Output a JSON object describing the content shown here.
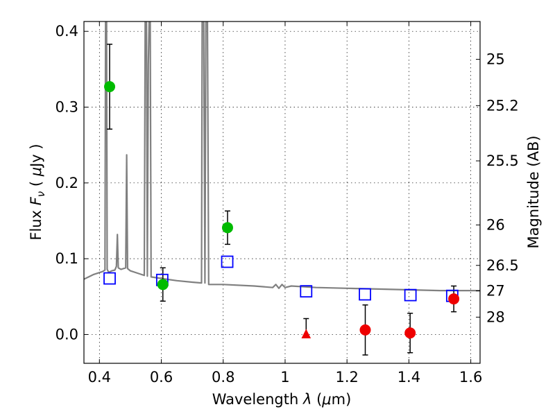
{
  "chart_data": {
    "type": "scatter",
    "xlabel_parts": {
      "pre": "Wavelength  ",
      "sym": "λ",
      "post": " (",
      "mu": "μ",
      "end": "m)"
    },
    "ylabel_parts": {
      "pre": "Flux  ",
      "sym": "F",
      "sub": "ν",
      "post": "  ( ",
      "mu": "μ",
      "end": "Jy )"
    },
    "ylabel_right": "Magnitude (AB)",
    "xlim": [
      0.35,
      1.63
    ],
    "ylim": [
      -0.038,
      0.413
    ],
    "grid": true,
    "x_ticks": [
      {
        "value": 0.4,
        "label": "0.4"
      },
      {
        "value": 0.6,
        "label": "0.6"
      },
      {
        "value": 0.8,
        "label": "0.8"
      },
      {
        "value": 1.0,
        "label": "1"
      },
      {
        "value": 1.2,
        "label": "1.2"
      },
      {
        "value": 1.4,
        "label": "1.4"
      },
      {
        "value": 1.6,
        "label": "1.6"
      }
    ],
    "y_ticks": [
      {
        "value": 0.0,
        "label": "0.0"
      },
      {
        "value": 0.1,
        "label": "0.1"
      },
      {
        "value": 0.2,
        "label": "0.2"
      },
      {
        "value": 0.3,
        "label": "0.3"
      },
      {
        "value": 0.4,
        "label": "0.4"
      }
    ],
    "magnitude_ticks": [
      {
        "value": 25,
        "label": "25"
      },
      {
        "value": 25.2,
        "label": "25.2"
      },
      {
        "value": 25.5,
        "label": "25.5"
      },
      {
        "value": 26,
        "label": "26"
      },
      {
        "value": 26.5,
        "label": "26.5"
      },
      {
        "value": 27,
        "label": "27"
      },
      {
        "value": 28,
        "label": "28"
      }
    ],
    "series": [
      {
        "kind": "model_spectrum",
        "color": "#808080",
        "points": [
          [
            0.35,
            0.073
          ],
          [
            0.38,
            0.079
          ],
          [
            0.41,
            0.083
          ],
          [
            0.418,
            0.085
          ],
          [
            0.42,
            0.42
          ],
          [
            0.423,
            0.42
          ],
          [
            0.425,
            0.086
          ],
          [
            0.43,
            0.082
          ],
          [
            0.44,
            0.084
          ],
          [
            0.45,
            0.085
          ],
          [
            0.455,
            0.09
          ],
          [
            0.458,
            0.132
          ],
          [
            0.461,
            0.088
          ],
          [
            0.47,
            0.086
          ],
          [
            0.485,
            0.088
          ],
          [
            0.488,
            0.237
          ],
          [
            0.491,
            0.087
          ],
          [
            0.5,
            0.084
          ],
          [
            0.53,
            0.08
          ],
          [
            0.545,
            0.078
          ],
          [
            0.548,
            0.42
          ],
          [
            0.552,
            0.42
          ],
          [
            0.555,
            0.077
          ],
          [
            0.558,
            0.356
          ],
          [
            0.561,
            0.42
          ],
          [
            0.564,
            0.42
          ],
          [
            0.567,
            0.076
          ],
          [
            0.6,
            0.074
          ],
          [
            0.65,
            0.071
          ],
          [
            0.7,
            0.069
          ],
          [
            0.73,
            0.068
          ],
          [
            0.732,
            0.42
          ],
          [
            0.737,
            0.42
          ],
          [
            0.741,
            0.068
          ],
          [
            0.744,
            0.42
          ],
          [
            0.749,
            0.42
          ],
          [
            0.753,
            0.066
          ],
          [
            0.8,
            0.066
          ],
          [
            0.9,
            0.064
          ],
          [
            0.96,
            0.062
          ],
          [
            0.97,
            0.066
          ],
          [
            0.98,
            0.061
          ],
          [
            0.99,
            0.066
          ],
          [
            1.0,
            0.062
          ],
          [
            1.02,
            0.064
          ],
          [
            1.1,
            0.062
          ],
          [
            1.2,
            0.061
          ],
          [
            1.3,
            0.06
          ],
          [
            1.4,
            0.059
          ],
          [
            1.5,
            0.058
          ],
          [
            1.63,
            0.058
          ]
        ]
      },
      {
        "kind": "model_photometry",
        "color": "#0000ff",
        "marker": "square-open",
        "x": [
          0.433,
          0.603,
          0.813,
          1.068,
          1.258,
          1.405,
          1.54
        ],
        "y": [
          0.074,
          0.072,
          0.096,
          0.057,
          0.053,
          0.052,
          0.051
        ]
      },
      {
        "kind": "detections_optical",
        "color": "#00bb00",
        "marker": "circle",
        "x": [
          0.433,
          0.605,
          0.814
        ],
        "y": [
          0.327,
          0.066,
          0.141
        ],
        "yerr": [
          0.056,
          0.022,
          0.022
        ]
      },
      {
        "kind": "detections_nir",
        "color": "#ee0000",
        "marker": "circle",
        "x": [
          1.259,
          1.404,
          1.545
        ],
        "y": [
          0.006,
          0.002,
          0.047
        ],
        "yerr": [
          0.033,
          0.026,
          0.017
        ]
      },
      {
        "kind": "upper_limit",
        "color": "#ee0000",
        "marker": "triangle",
        "x": [
          1.068
        ],
        "y": [
          0.0
        ],
        "yerr_upper": [
          0.021
        ]
      }
    ]
  }
}
